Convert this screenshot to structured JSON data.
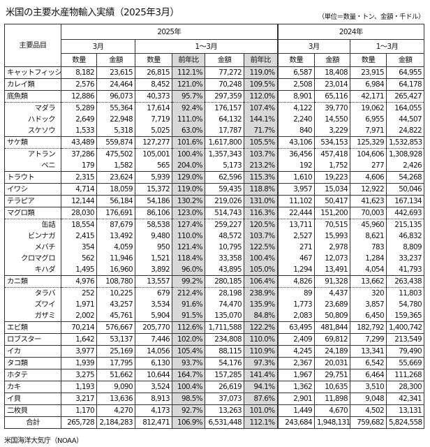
{
  "title": "米国の主要水産物輸入実績（2025年3月）",
  "unit_note": "（単位＝数量・トン、金額・千ドル）",
  "header": {
    "item": "主要品目",
    "year_2025": "2025年",
    "year_2024": "2024年",
    "march": "3月",
    "jan_mar": "1〜3月",
    "qty": "数量",
    "amount": "金額",
    "yoy": "前年比"
  },
  "columns": [
    "3月 数量",
    "3月 金額",
    "1〜3月 数量",
    "1〜3月 前年比(数量)",
    "1〜3月 金額",
    "1〜3月 前年比(金額)",
    "2024 3月 数量",
    "2024 3月 金額",
    "2024 1〜3月 数量",
    "2024 1〜3月 金額"
  ],
  "rows": [
    {
      "name": "キャットフィッシュ",
      "type": "main",
      "values": [
        "8,182",
        "23,615",
        "26,815",
        "112.1%",
        "77,272",
        "119.0%",
        "6,587",
        "18,408",
        "23,915",
        "64,955"
      ]
    },
    {
      "name": "カレイ類",
      "type": "main",
      "values": [
        "2,576",
        "24,464",
        "8,452",
        "121.0%",
        "70,248",
        "109.5%",
        "2,508",
        "23,014",
        "6,984",
        "64,178"
      ]
    },
    {
      "name": "底魚類",
      "type": "parent",
      "values": [
        "12,886",
        "96,073",
        "40,373",
        "95.7%",
        "297,359",
        "112.0%",
        "8,901",
        "65,116",
        "42,171",
        "265,427"
      ]
    },
    {
      "name": "マダラ",
      "type": "sub",
      "values": [
        "5,289",
        "55,364",
        "17,614",
        "92.4%",
        "176,157",
        "107.4%",
        "4,122",
        "39,770",
        "19,062",
        "164,055"
      ]
    },
    {
      "name": "ハドック",
      "type": "sub",
      "values": [
        "2,649",
        "22,948",
        "7,719",
        "111.0%",
        "64,132",
        "144.1%",
        "2,240",
        "14,550",
        "6,955",
        "44,507"
      ]
    },
    {
      "name": "スケソウ",
      "type": "sub last",
      "values": [
        "1,533",
        "5,318",
        "5,025",
        "63.0%",
        "17,787",
        "71.7%",
        "840",
        "3,229",
        "7,971",
        "24,822"
      ]
    },
    {
      "name": "サケ類",
      "type": "parent",
      "values": [
        "43,489",
        "559,874",
        "127,277",
        "101.6%",
        "1,617,800",
        "105.5%",
        "43,106",
        "534,153",
        "125,329",
        "1,532,853"
      ]
    },
    {
      "name": "アトラン",
      "type": "sub",
      "values": [
        "37,286",
        "475,502",
        "105,001",
        "100.4%",
        "1,357,343",
        "103.7%",
        "36,456",
        "457,418",
        "104,606",
        "1,308,928"
      ]
    },
    {
      "name": "ベニ",
      "type": "sub last",
      "values": [
        "179",
        "1,582",
        "565",
        "204.0%",
        "5,173",
        "213.2%",
        "192",
        "1,752",
        "277",
        "2,426"
      ]
    },
    {
      "name": "トラウト",
      "type": "main",
      "values": [
        "2,315",
        "23,624",
        "5,939",
        "129.0%",
        "62,596",
        "115.3%",
        "1,610",
        "19,223",
        "4,606",
        "54,268"
      ]
    },
    {
      "name": "イワシ",
      "type": "main",
      "values": [
        "4,714",
        "18,059",
        "15,372",
        "119.0%",
        "59,435",
        "118.8%",
        "3,957",
        "15,034",
        "12,922",
        "50,046"
      ]
    },
    {
      "name": "テラピア",
      "type": "main",
      "values": [
        "12,144",
        "56,184",
        "54,186",
        "130.2%",
        "219,026",
        "131.0%",
        "11,102",
        "50,417",
        "41,623",
        "167,134"
      ]
    },
    {
      "name": "マグロ類",
      "type": "parent",
      "values": [
        "28,030",
        "176,691",
        "86,106",
        "123.0%",
        "514,743",
        "116.3%",
        "22,444",
        "151,200",
        "70,003",
        "442,693"
      ]
    },
    {
      "name": "缶詰",
      "type": "sub",
      "values": [
        "18,554",
        "87,679",
        "58,538",
        "127.4%",
        "259,227",
        "120.5%",
        "13,711",
        "70,515",
        "45,960",
        "215,135"
      ]
    },
    {
      "name": "ビンナガ",
      "type": "sub",
      "values": [
        "2,415",
        "13,492",
        "9,480",
        "110.0%",
        "48,572",
        "103.7%",
        "2,527",
        "15,993",
        "8,621",
        "46,832"
      ]
    },
    {
      "name": "メバチ",
      "type": "sub",
      "values": [
        "354",
        "4,059",
        "950",
        "121.4%",
        "10,795",
        "122.5%",
        "271",
        "2,978",
        "783",
        "8,809"
      ]
    },
    {
      "name": "クロマグロ",
      "type": "sub",
      "values": [
        "562",
        "11,946",
        "1,521",
        "118.4%",
        "33,358",
        "100.4%",
        "467",
        "12,073",
        "1,284",
        "33,237"
      ]
    },
    {
      "name": "キハダ",
      "type": "sub last",
      "values": [
        "1,495",
        "16,960",
        "3,892",
        "96.0%",
        "43,895",
        "105.0%",
        "1,294",
        "13,491",
        "4,054",
        "41,793"
      ]
    },
    {
      "name": "カニ類",
      "type": "parent",
      "values": [
        "4,976",
        "108,780",
        "13,557",
        "99.2%",
        "280,185",
        "106.4%",
        "4,826",
        "91,328",
        "13,662",
        "263,438"
      ]
    },
    {
      "name": "タラバ",
      "type": "sub",
      "values": [
        "252",
        "10,225",
        "679",
        "212.4%",
        "28,198",
        "238.9%",
        "89",
        "4,437",
        "320",
        "11,803"
      ]
    },
    {
      "name": "ズワイ",
      "type": "sub",
      "values": [
        "1,971",
        "43,257",
        "3,534",
        "91.6%",
        "74,470",
        "135.9%",
        "1,773",
        "23,689",
        "3,857",
        "54,780"
      ]
    },
    {
      "name": "ガザミ",
      "type": "sub last",
      "values": [
        "2,002",
        "45,761",
        "5,904",
        "91.5%",
        "135,070",
        "84.8%",
        "2,083",
        "50,809",
        "6,450",
        "159,365"
      ]
    },
    {
      "name": "エビ類",
      "type": "main",
      "values": [
        "70,214",
        "576,667",
        "205,770",
        "112.6%",
        "1,711,588",
        "122.2%",
        "63,495",
        "481,844",
        "182,792",
        "1,400,742"
      ]
    },
    {
      "name": "ロブスター",
      "type": "main",
      "values": [
        "1,642",
        "53,137",
        "7,446",
        "102.0%",
        "234,808",
        "110.0%",
        "2,409",
        "69,812",
        "7,299",
        "213,549"
      ]
    },
    {
      "name": "イカ",
      "type": "main",
      "values": [
        "3,977",
        "25,169",
        "14,056",
        "105.4%",
        "88,115",
        "110.9%",
        "4,245",
        "24,189",
        "13,341",
        "79,490"
      ]
    },
    {
      "name": "タコ類",
      "type": "main",
      "values": [
        "1,939",
        "17,795",
        "6,130",
        "93.7%",
        "54,176",
        "97.3%",
        "2,367",
        "20,031",
        "6,542",
        "55,669"
      ]
    },
    {
      "name": "ホタテ",
      "type": "main",
      "values": [
        "3,275",
        "51,662",
        "10,644",
        "164.7%",
        "157,285",
        "141.4%",
        "1,967",
        "29,751",
        "6,464",
        "111,268"
      ]
    },
    {
      "name": "カキ",
      "type": "main",
      "values": [
        "1,193",
        "9,090",
        "3,524",
        "100.4%",
        "26,619",
        "94.1%",
        "1,362",
        "10,635",
        "3,510",
        "28,300"
      ]
    },
    {
      "name": "イ貝",
      "type": "main",
      "values": [
        "3,217",
        "13,636",
        "8,913",
        "98.5%",
        "37,073",
        "87.6%",
        "2,901",
        "11,898",
        "9,048",
        "42,341"
      ]
    },
    {
      "name": "二枚貝",
      "type": "main",
      "values": [
        "1,170",
        "4,270",
        "4,173",
        "92.7%",
        "13,263",
        "101.0%",
        "1,449",
        "4,670",
        "4,502",
        "13,131"
      ]
    },
    {
      "name": "合計",
      "type": "total",
      "values": [
        "265,728",
        "2,184,283",
        "812,471",
        "106.9%",
        "6,531,448",
        "112.1%",
        "243,684",
        "1,948,131",
        "759,682",
        "5,824,558"
      ]
    }
  ],
  "source": "米国海洋大気庁（NOAA）",
  "colors": {
    "shade": "#d9d9d9",
    "border": "#333333"
  }
}
